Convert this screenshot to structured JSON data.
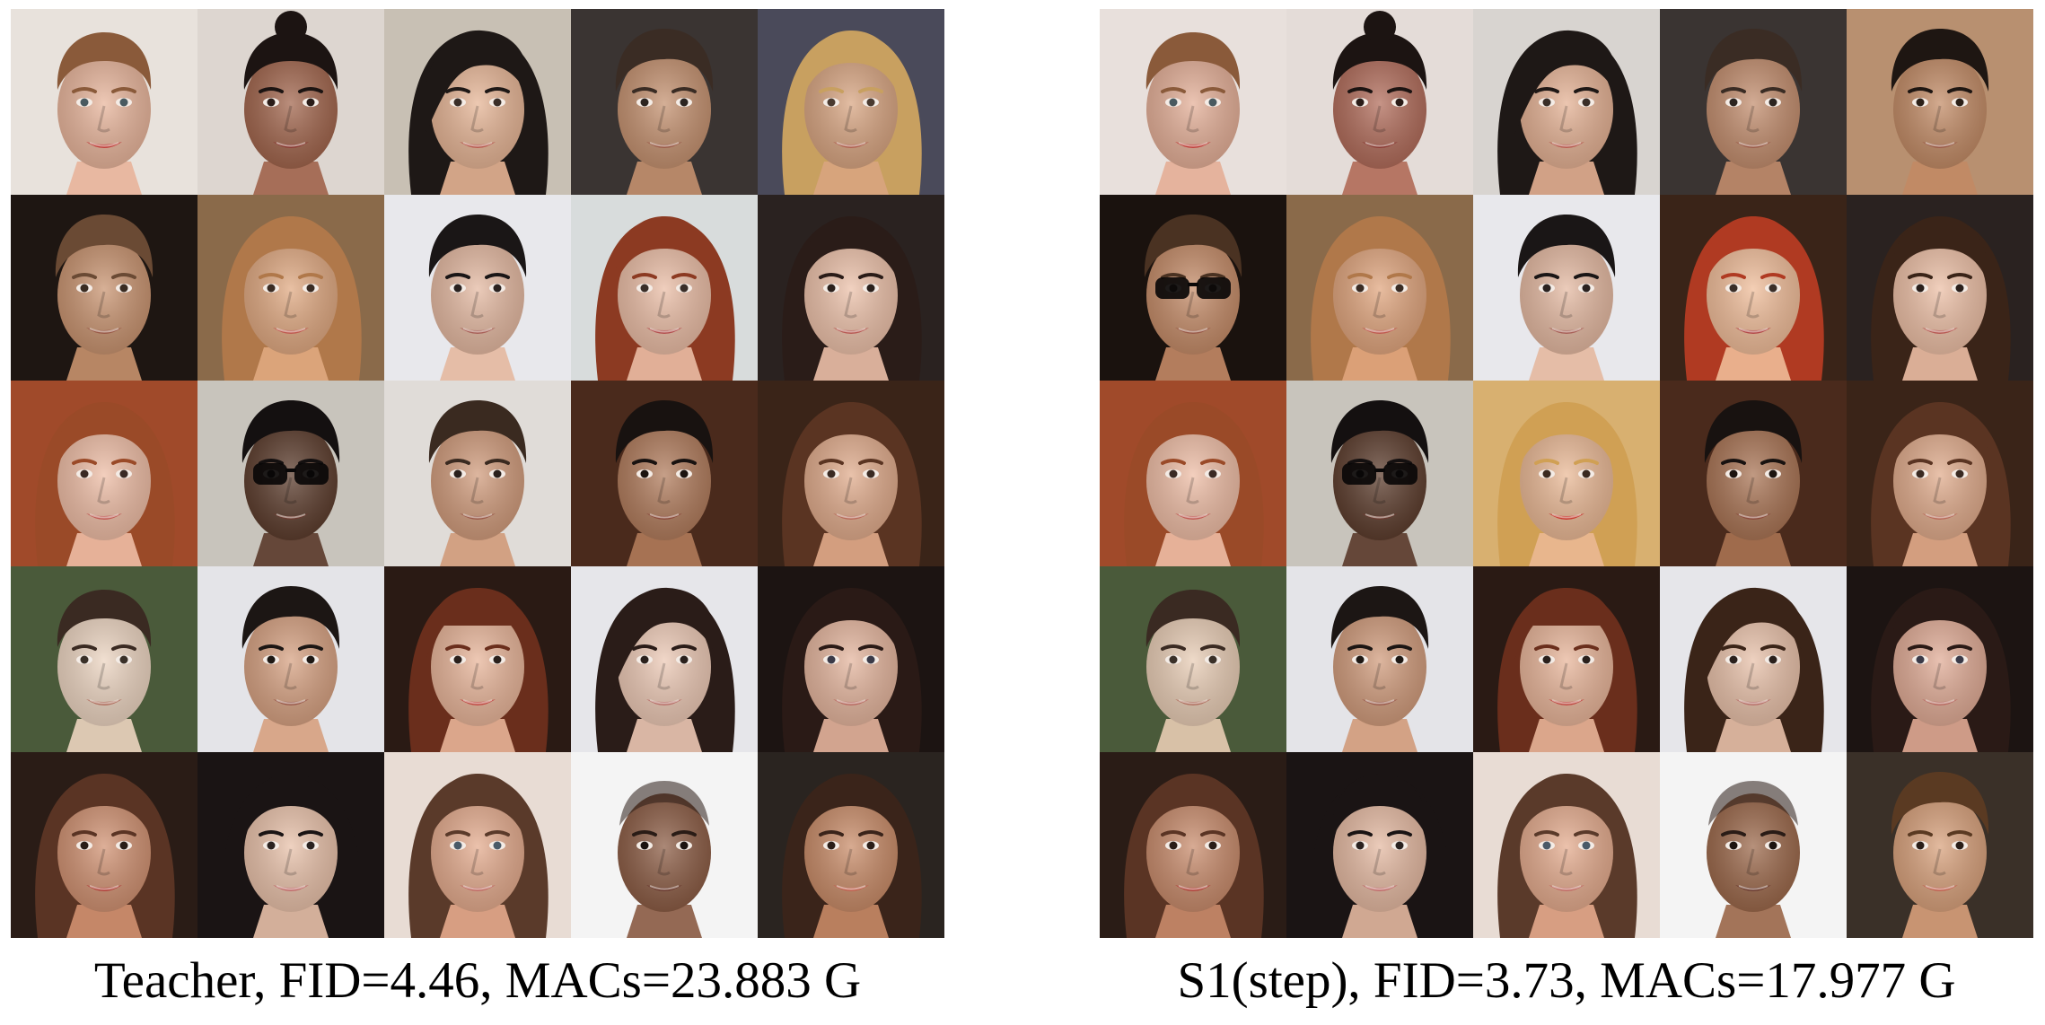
{
  "panels": [
    {
      "caption": "Teacher, FID=4.46, MACs=23.883 G",
      "tiles": [
        {
          "bg": "#e8e2dc",
          "skin": "#e8b49a",
          "hair": "#8a5a3a",
          "lips": "#c0403c",
          "eyes": "#4a5a60",
          "hair_style": "updo"
        },
        {
          "bg": "#ddd6d0",
          "skin": "#a0634a",
          "hair": "#1c1412",
          "lips": "#8a3a34",
          "eyes": "#2a1c18",
          "hair_style": "bun"
        },
        {
          "bg": "#c8c0b4",
          "skin": "#e6b494",
          "hair": "#1e1816",
          "lips": "#b85a50",
          "eyes": "#3a2e28",
          "hair_style": "side"
        },
        {
          "bg": "#3a3432",
          "skin": "#c4906e",
          "hair": "#3a2c24",
          "lips": "#9a5a48",
          "eyes": "#2c2420",
          "hair_style": "short"
        },
        {
          "bg": "#4a4a5a",
          "skin": "#d8a480",
          "hair": "#c8a060",
          "lips": "#b06050",
          "eyes": "#4a3a30",
          "hair_style": "long"
        },
        {
          "bg": "#1e1612",
          "skin": "#c8926e",
          "hair": "#6a4a34",
          "lips": "#9a5a48",
          "eyes": "#3a2c22",
          "hair_style": "short"
        },
        {
          "bg": "#8a6a4a",
          "skin": "#e0a880",
          "hair": "#b0784a",
          "lips": "#c05a50",
          "eyes": "#3a2c24",
          "hair_style": "long"
        },
        {
          "bg": "#e8e8ec",
          "skin": "#e4b8a0",
          "hair": "#1a1616",
          "lips": "#a86058",
          "eyes": "#2a2220",
          "hair_style": "short"
        },
        {
          "bg": "#d8dcdc",
          "skin": "#eabca4",
          "hair": "#8c3a22",
          "lips": "#b45050",
          "eyes": "#3a2e28",
          "hair_style": "long"
        },
        {
          "bg": "#2a2220",
          "skin": "#ecc0a8",
          "hair": "#2a1c18",
          "lips": "#b85a54",
          "eyes": "#2a201c",
          "hair_style": "long"
        },
        {
          "bg": "#a04a2a",
          "skin": "#eebca4",
          "hair": "#9a4a28",
          "lips": "#c05a54",
          "eyes": "#3a2a24",
          "hair_style": "long"
        },
        {
          "bg": "#c8c4bc",
          "skin": "#5a3a2a",
          "hair": "#141010",
          "lips": "#6a3a30",
          "eyes": "#0c0a0a",
          "hair_style": "short",
          "glasses": true
        },
        {
          "bg": "#e0dcd8",
          "skin": "#d09a7a",
          "hair": "#3a2a20",
          "lips": "#9a5a4a",
          "eyes": "#2a201c",
          "hair_style": "short"
        },
        {
          "bg": "#4a2a1c",
          "skin": "#b07a5a",
          "hair": "#181210",
          "lips": "#8a4a3c",
          "eyes": "#1c1410",
          "hair_style": "short"
        },
        {
          "bg": "#3a2418",
          "skin": "#e0aa8a",
          "hair": "#5a3422",
          "lips": "#b86a5a",
          "eyes": "#3a2a22",
          "hair_style": "long"
        },
        {
          "bg": "#4a5a3a",
          "skin": "#ecd4c0",
          "hair": "#3a2a22",
          "lips": "#b07060",
          "eyes": "#3a3028",
          "hair_style": "updo"
        },
        {
          "bg": "#e4e4e8",
          "skin": "#d6a080",
          "hair": "#1c1614",
          "lips": "#9a5a4c",
          "eyes": "#1e1814",
          "hair_style": "short"
        },
        {
          "bg": "#2a1a14",
          "skin": "#e8b498",
          "hair": "#6a2e1c",
          "lips": "#c04a44",
          "eyes": "#2a201c",
          "hair_style": "bangs"
        },
        {
          "bg": "#e6e6ea",
          "skin": "#ecc8b4",
          "hair": "#2a1c18",
          "lips": "#b8706a",
          "eyes": "#2a201c",
          "hair_style": "side"
        },
        {
          "bg": "#1c1412",
          "skin": "#e4b49c",
          "hair": "#2a1a16",
          "lips": "#b86a62",
          "eyes": "#3a3a48",
          "hair_style": "long"
        },
        {
          "bg": "#2a1c16",
          "skin": "#d09070",
          "hair": "#5a3424",
          "lips": "#b0403a",
          "eyes": "#2a1e18",
          "hair_style": "long"
        },
        {
          "bg": "#1a1414",
          "skin": "#e8c0a8",
          "hair": "#1a1414",
          "lips": "#c06a6a",
          "eyes": "#2a2220",
          "hair_style": "long"
        },
        {
          "bg": "#e8dcd4",
          "skin": "#e4aa8c",
          "hair": "#5a3a2a",
          "lips": "#c06a64",
          "eyes": "#4a5a68",
          "hair_style": "long"
        },
        {
          "bg": "#f4f4f4",
          "skin": "#8a5a42",
          "hair": "#2a1c16",
          "lips": "#6a3a30",
          "eyes": "#1c1410",
          "hair_style": "bald"
        },
        {
          "bg": "#2a2420",
          "skin": "#c88a66",
          "hair": "#3a241a",
          "lips": "#c06050",
          "eyes": "#2a1e18",
          "hair_style": "long"
        }
      ]
    },
    {
      "caption": "S1(step), FID=3.73, MACs=17.977 G",
      "tiles": [
        {
          "bg": "#e8e0dc",
          "skin": "#e4ae96",
          "hair": "#8a5a3a",
          "lips": "#c0403c",
          "eyes": "#4a5a60",
          "hair_style": "updo"
        },
        {
          "bg": "#e4dcd8",
          "skin": "#b06a58",
          "hair": "#1c1412",
          "lips": "#8a3a34",
          "eyes": "#2a1c18",
          "hair_style": "bun"
        },
        {
          "bg": "#d8d4d0",
          "skin": "#e4b092",
          "hair": "#1e1816",
          "lips": "#b85a50",
          "eyes": "#3a2e28",
          "hair_style": "side"
        },
        {
          "bg": "#3a3432",
          "skin": "#c28c6c",
          "hair": "#3a2c24",
          "lips": "#9a5a48",
          "eyes": "#2c2420",
          "hair_style": "short"
        },
        {
          "bg": "#b89070",
          "skin": "#c28a64",
          "hair": "#1e1612",
          "lips": "#9a5a48",
          "eyes": "#2c2018",
          "hair_style": "short"
        },
        {
          "bg": "#1a120e",
          "skin": "#c48a66",
          "hair": "#4a3222",
          "lips": "#9a5a48",
          "eyes": "#3a2c22",
          "hair_style": "short",
          "glasses": true
        },
        {
          "bg": "#8a6a4a",
          "skin": "#e0a47c",
          "hair": "#b0784a",
          "lips": "#c05a50",
          "eyes": "#3a2c24",
          "hair_style": "long"
        },
        {
          "bg": "#e8e8ec",
          "skin": "#e4b8a0",
          "hair": "#1a1616",
          "lips": "#a86058",
          "eyes": "#2a2220",
          "hair_style": "short"
        },
        {
          "bg": "#3a2418",
          "skin": "#f0bc98",
          "hair": "#b03a22",
          "lips": "#b44a4a",
          "eyes": "#3a2e28",
          "hair_style": "long"
        },
        {
          "bg": "#2a2220",
          "skin": "#ecbea4",
          "hair": "#3a2418",
          "lips": "#b85a54",
          "eyes": "#2a201c",
          "hair_style": "long"
        },
        {
          "bg": "#a04a2a",
          "skin": "#eebca4",
          "hair": "#9a4a28",
          "lips": "#c05a54",
          "eyes": "#3a2a24",
          "hair_style": "long"
        },
        {
          "bg": "#c8c4bc",
          "skin": "#5a3a2a",
          "hair": "#141010",
          "lips": "#6a3a30",
          "eyes": "#0c0a0a",
          "hair_style": "short",
          "glasses": true
        },
        {
          "bg": "#d8b070",
          "skin": "#eab894",
          "hair": "#d0a054",
          "lips": "#c83a30",
          "eyes": "#3a2a20",
          "hair_style": "long"
        },
        {
          "bg": "#4a2a1c",
          "skin": "#a87252",
          "hair": "#181210",
          "lips": "#8a4a3c",
          "eyes": "#1c1410",
          "hair_style": "short"
        },
        {
          "bg": "#3a2418",
          "skin": "#e0aa8a",
          "hair": "#5a3422",
          "lips": "#b86a5a",
          "eyes": "#3a2a22",
          "hair_style": "long"
        },
        {
          "bg": "#4a5a3a",
          "skin": "#e8ccb4",
          "hair": "#3a2a22",
          "lips": "#b07060",
          "eyes": "#3a3028",
          "hair_style": "updo"
        },
        {
          "bg": "#e4e4e8",
          "skin": "#d09a7a",
          "hair": "#1c1614",
          "lips": "#9a5a4c",
          "eyes": "#1e1814",
          "hair_style": "short"
        },
        {
          "bg": "#2a1a14",
          "skin": "#e8b498",
          "hair": "#6a2e1c",
          "lips": "#c04a44",
          "eyes": "#2a201c",
          "hair_style": "bangs"
        },
        {
          "bg": "#e6e6ea",
          "skin": "#e8c0a8",
          "hair": "#3a2418",
          "lips": "#b8706a",
          "eyes": "#2a201c",
          "hair_style": "side"
        },
        {
          "bg": "#1c1412",
          "skin": "#e0aa94",
          "hair": "#2a1a16",
          "lips": "#b86a62",
          "eyes": "#3a3a48",
          "hair_style": "long"
        },
        {
          "bg": "#2a1c16",
          "skin": "#c88a6a",
          "hair": "#5a3424",
          "lips": "#b0403a",
          "eyes": "#2a1e18",
          "hair_style": "long"
        },
        {
          "bg": "#1a1414",
          "skin": "#e4b8a0",
          "hair": "#1a1414",
          "lips": "#c06a6a",
          "eyes": "#2a2220",
          "hair_style": "long"
        },
        {
          "bg": "#e8dcd4",
          "skin": "#e4aa8c",
          "hair": "#5a3a2a",
          "lips": "#c06a64",
          "eyes": "#4a5a68",
          "hair_style": "long"
        },
        {
          "bg": "#f4f4f4",
          "skin": "#9a6648",
          "hair": "#2a1c16",
          "lips": "#6a3a30",
          "eyes": "#1c1410",
          "hair_style": "bald"
        },
        {
          "bg": "#3a3028",
          "skin": "#d8a07a",
          "hair": "#5a3a22",
          "lips": "#c06050",
          "eyes": "#2a1e18",
          "hair_style": "short"
        }
      ]
    }
  ]
}
